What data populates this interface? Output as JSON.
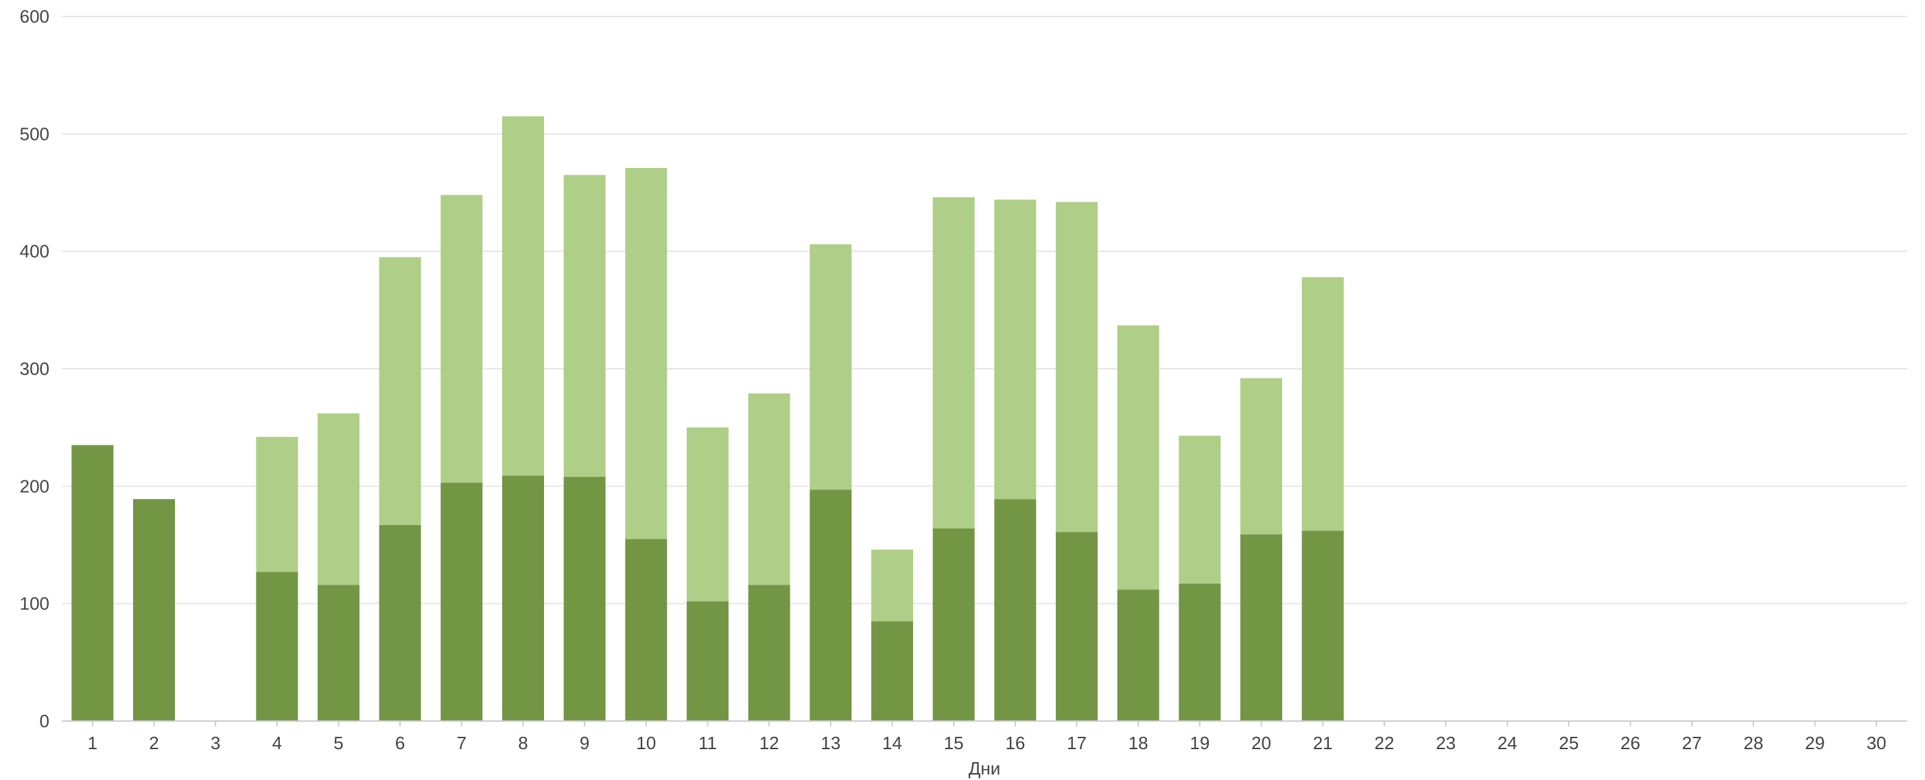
{
  "chart_data": {
    "type": "bar",
    "stacked": true,
    "title": "",
    "xlabel": "Дни",
    "ylabel": "",
    "ylim": [
      0,
      600
    ],
    "yticks": [
      0,
      100,
      200,
      300,
      400,
      500,
      600
    ],
    "grid": true,
    "legend": "none",
    "categories": [
      "1",
      "2",
      "3",
      "4",
      "5",
      "6",
      "7",
      "8",
      "9",
      "10",
      "11",
      "12",
      "13",
      "14",
      "15",
      "16",
      "17",
      "18",
      "19",
      "20",
      "21",
      "22",
      "23",
      "24",
      "25",
      "26",
      "27",
      "28",
      "29",
      "30"
    ],
    "series": [
      {
        "color": "#739645",
        "values": [
          235,
          189,
          0,
          127,
          116,
          167,
          203,
          209,
          208,
          155,
          102,
          116,
          197,
          85,
          164,
          189,
          161,
          112,
          117,
          159,
          162,
          0,
          0,
          0,
          0,
          0,
          0,
          0,
          0,
          0
        ]
      },
      {
        "color": "#afce87",
        "values": [
          0,
          0,
          0,
          115,
          146,
          228,
          245,
          306,
          257,
          316,
          148,
          163,
          209,
          61,
          282,
          255,
          281,
          225,
          126,
          133,
          216,
          0,
          0,
          0,
          0,
          0,
          0,
          0,
          0,
          0
        ]
      }
    ],
    "colors": {
      "grid": "#e6e6e6",
      "axis": "#cccccc",
      "text": "#444444"
    }
  }
}
